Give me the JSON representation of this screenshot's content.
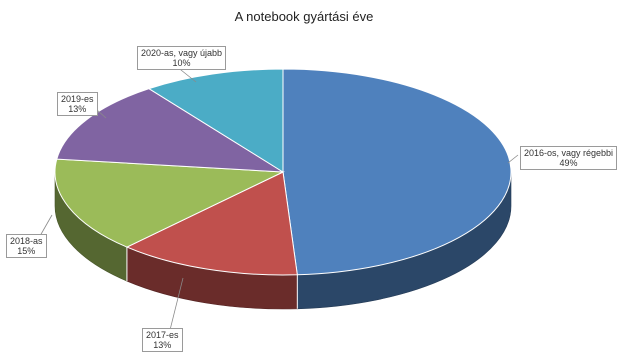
{
  "chart_data": {
    "type": "pie",
    "title": "A notebook gyártási éve",
    "slices": [
      {
        "label": "2016-os, vagy régebbi",
        "value": 49,
        "value_label": "49%",
        "color": "#4f81bd"
      },
      {
        "label": "2017-es",
        "value": 13,
        "value_label": "13%",
        "color": "#c0504d"
      },
      {
        "label": "2018-as",
        "value": 15,
        "value_label": "15%",
        "color": "#9bbb59"
      },
      {
        "label": "2019-es",
        "value": 13,
        "value_label": "13%",
        "color": "#8064a2"
      },
      {
        "label": "2020-as, vagy újabb",
        "value": 10,
        "value_label": "10%",
        "color": "#4bacc6"
      }
    ],
    "style": "3d",
    "legend": "none"
  }
}
